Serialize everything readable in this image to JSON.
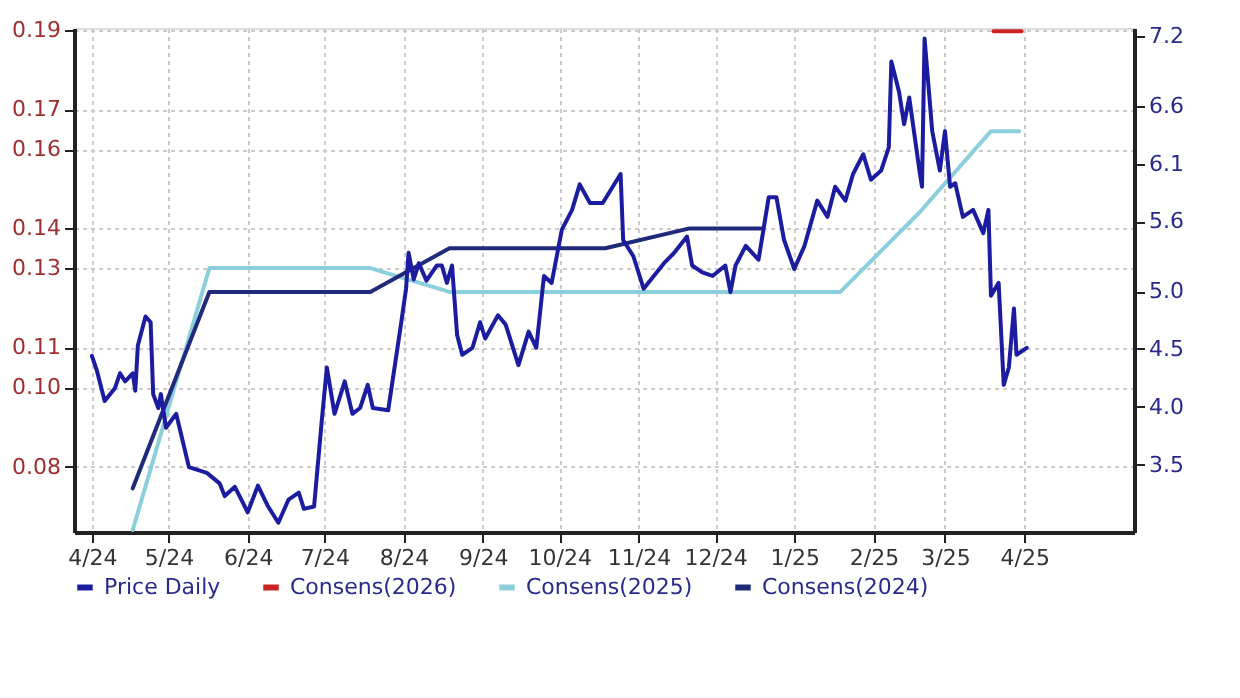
{
  "chart_data": {
    "type": "line",
    "grid": true,
    "legend": "bottom",
    "line_style": "solid",
    "xlim": [
      "2024-03-25",
      "2025-05-14"
    ],
    "xticks": [
      {
        "value": "2024-04-01",
        "label": "4/24"
      },
      {
        "value": "2024-05-01",
        "label": "5/24"
      },
      {
        "value": "2024-06-01",
        "label": "6/24"
      },
      {
        "value": "2024-07-01",
        "label": "7/24"
      },
      {
        "value": "2024-08-01",
        "label": "8/24"
      },
      {
        "value": "2024-09-01",
        "label": "9/24"
      },
      {
        "value": "2024-10-01",
        "label": "10/24"
      },
      {
        "value": "2024-11-01",
        "label": "11/24"
      },
      {
        "value": "2024-12-01",
        "label": "12/24"
      },
      {
        "value": "2025-01-01",
        "label": "1/25"
      },
      {
        "value": "2025-02-01",
        "label": "2/25"
      },
      {
        "value": "2025-03-01",
        "label": "3/25"
      },
      {
        "value": "2025-04-01",
        "label": "4/25"
      }
    ],
    "ylim": [
      0.0635,
      0.1905
    ],
    "yticks": [
      0.08,
      {
        "value": 0.1,
        "label": "0.10"
      },
      0.11,
      0.13,
      0.14,
      0.16,
      0.17,
      0.19
    ],
    "y2lim": [
      2.92,
      7.27
    ],
    "y2ticks": [
      3.5,
      {
        "value": 4,
        "label": "4.0"
      },
      4.5,
      {
        "value": 5,
        "label": "5.0"
      },
      5.6,
      6.1,
      6.6,
      7.2
    ],
    "series": [
      {
        "name": "Price Daily",
        "color": "#1c1ca0",
        "axis": "y2",
        "x": [
          "2024-04-01",
          "2024-04-03",
          "2024-04-06",
          "2024-04-10",
          "2024-04-12",
          "2024-04-14",
          "2024-04-17",
          "2024-04-18",
          "2024-04-19",
          "2024-04-22",
          "2024-04-24",
          "2024-04-25",
          "2024-04-27",
          "2024-04-28",
          "2024-04-30",
          "2024-05-04",
          "2024-05-09",
          "2024-05-16",
          "2024-05-21",
          "2024-05-23",
          "2024-05-27",
          "2024-06-01",
          "2024-06-05",
          "2024-06-09",
          "2024-06-13",
          "2024-06-17",
          "2024-06-21",
          "2024-06-23",
          "2024-06-27",
          "2024-06-30",
          "2024-07-02",
          "2024-07-05",
          "2024-07-09",
          "2024-07-12",
          "2024-07-15",
          "2024-07-18",
          "2024-07-20",
          "2024-07-26",
          "2024-07-31",
          "2024-08-02",
          "2024-08-03",
          "2024-08-05",
          "2024-08-07",
          "2024-08-10",
          "2024-08-14",
          "2024-08-16",
          "2024-08-18",
          "2024-08-20",
          "2024-08-22",
          "2024-08-24",
          "2024-08-28",
          "2024-08-31",
          "2024-09-02",
          "2024-09-07",
          "2024-09-10",
          "2024-09-15",
          "2024-09-19",
          "2024-09-22",
          "2024-09-25",
          "2024-09-28",
          "2024-10-02",
          "2024-10-06",
          "2024-10-09",
          "2024-10-13",
          "2024-10-18",
          "2024-10-25",
          "2024-10-26",
          "2024-10-30",
          "2024-11-03",
          "2024-11-07",
          "2024-11-11",
          "2024-11-15",
          "2024-11-20",
          "2024-11-22",
          "2024-11-26",
          "2024-11-30",
          "2024-12-05",
          "2024-12-07",
          "2024-12-09",
          "2024-12-13",
          "2024-12-18",
          "2024-12-22",
          "2024-12-25",
          "2024-12-28",
          "2025-01-01",
          "2025-01-05",
          "2025-01-10",
          "2025-01-14",
          "2025-01-17",
          "2025-01-21",
          "2025-01-24",
          "2025-01-28",
          "2025-01-31",
          "2025-02-04",
          "2025-02-07",
          "2025-02-08",
          "2025-02-11",
          "2025-02-13",
          "2025-02-15",
          "2025-02-19",
          "2025-02-20",
          "2025-02-21",
          "2025-02-24",
          "2025-02-27",
          "2025-03-01",
          "2025-03-03",
          "2025-03-05",
          "2025-03-08",
          "2025-03-12",
          "2025-03-16",
          "2025-03-18",
          "2025-03-19",
          "2025-03-22",
          "2025-03-24",
          "2025-03-26",
          "2025-03-28",
          "2025-03-29",
          "2025-04-02"
        ],
        "values": [
          4.44,
          4.31,
          4.05,
          4.16,
          4.29,
          4.22,
          4.29,
          4.14,
          4.53,
          4.78,
          4.73,
          4.11,
          3.99,
          4.11,
          3.82,
          3.94,
          3.48,
          3.43,
          3.34,
          3.23,
          3.31,
          3.09,
          3.32,
          3.14,
          3.0,
          3.2,
          3.26,
          3.12,
          3.14,
          3.88,
          4.34,
          3.94,
          4.22,
          3.94,
          3.99,
          4.19,
          3.99,
          3.97,
          4.71,
          5.02,
          5.33,
          5.1,
          5.24,
          5.09,
          5.22,
          5.22,
          5.07,
          5.22,
          4.62,
          4.45,
          4.51,
          4.73,
          4.59,
          4.79,
          4.71,
          4.36,
          4.65,
          4.51,
          5.13,
          5.07,
          5.53,
          5.7,
          5.92,
          5.76,
          5.76,
          6.01,
          5.44,
          5.3,
          5.02,
          5.13,
          5.24,
          5.33,
          5.47,
          5.22,
          5.16,
          5.13,
          5.22,
          4.99,
          5.22,
          5.39,
          5.27,
          5.81,
          5.81,
          5.44,
          5.19,
          5.39,
          5.78,
          5.64,
          5.9,
          5.78,
          6.01,
          6.18,
          5.96,
          6.04,
          6.24,
          6.98,
          6.72,
          6.44,
          6.67,
          6.04,
          5.9,
          7.18,
          6.38,
          6.04,
          6.38,
          5.9,
          5.93,
          5.64,
          5.7,
          5.5,
          5.7,
          4.96,
          5.07,
          4.19,
          4.34,
          4.85,
          4.45,
          4.51
        ]
      },
      {
        "name": "Consens(2026)",
        "color": "#cc2222",
        "x": [
          "2025-03-20",
          "2025-03-31"
        ],
        "values": [
          0.1897,
          0.1897
        ]
      },
      {
        "name": "Consens(2025)",
        "color": "#8ccfdc",
        "x": [
          "2024-04-17",
          "2024-05-17",
          "2024-07-19",
          "2024-08-19",
          "2025-01-19",
          "2025-02-19",
          "2025-03-19",
          "2025-03-30"
        ],
        "values": [
          0.064,
          0.13,
          0.13,
          0.124,
          0.124,
          0.144,
          0.1645,
          0.1645
        ]
      },
      {
        "name": "Consens(2024)",
        "color": "#1f2a7a",
        "x": [
          "2024-04-17",
          "2024-05-17",
          "2024-07-19",
          "2024-08-19",
          "2024-10-19",
          "2024-11-21",
          "2024-12-19"
        ],
        "values": [
          0.0745,
          0.124,
          0.124,
          0.135,
          0.135,
          0.14,
          0.14
        ]
      }
    ]
  }
}
